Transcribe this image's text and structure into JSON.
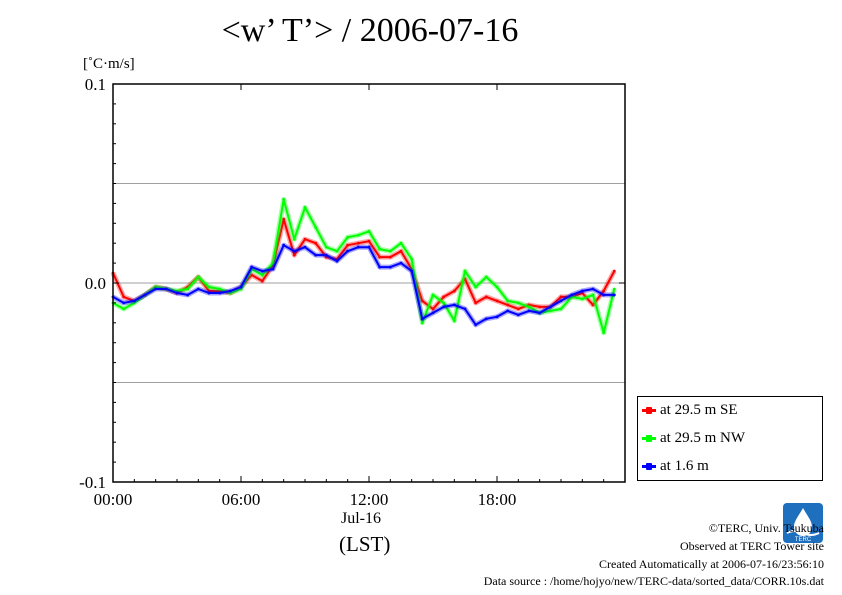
{
  "title": "<w’ T’> / 2006-07-16",
  "unit_label": "[˚C·m/s]",
  "x_label_date": "Jul-16",
  "x_label_zone": "(LST)",
  "footer": {
    "copyright": "©TERC, Univ. Tsukuba",
    "site": "Observed at TERC Tower site",
    "created": "Created Automatically at 2006-07-16/23:56:10",
    "source": "Data source : /home/hojyo/new/TERC-data/sorted_data/CORR.10s.dat"
  },
  "logo_text": "TERC",
  "colors": {
    "se": "#ff0000",
    "nw": "#00ff00",
    "low": "#0000ff"
  },
  "chart_data": {
    "type": "line",
    "title": "<w’ T’> / 2006-07-16",
    "xlabel": "Jul-16 (LST)",
    "ylabel": "[˚C·m/s]",
    "ylim": [
      -0.1,
      0.1
    ],
    "xlim": [
      0,
      24
    ],
    "x_ticks": [
      0,
      6,
      12,
      18
    ],
    "x_tick_labels": [
      "00:00",
      "06:00",
      "12:00",
      "18:00"
    ],
    "y_ticks": [
      -0.1,
      0.0,
      0.1
    ],
    "y_tick_labels": [
      "-0.1",
      "0.0",
      "0.1"
    ],
    "y_gridlines": [
      -0.05,
      0.05
    ],
    "legend_position": "right-bottom",
    "x": [
      0,
      0.5,
      1,
      1.5,
      2,
      2.5,
      3,
      3.5,
      4,
      4.5,
      5,
      5.5,
      6,
      6.5,
      7,
      7.5,
      8,
      8.5,
      9,
      9.5,
      10,
      10.5,
      11,
      11.5,
      12,
      12.5,
      13,
      13.5,
      14,
      14.5,
      15,
      15.5,
      16,
      16.5,
      17,
      17.5,
      18,
      18.5,
      19,
      19.5,
      20,
      20.5,
      21,
      21.5,
      22,
      22.5,
      23,
      23.5
    ],
    "series": [
      {
        "name": "at 29.5 m SE",
        "color": "#ff0000",
        "values": [
          0.005,
          -0.007,
          -0.009,
          -0.006,
          -0.002,
          -0.003,
          -0.005,
          -0.002,
          0.003,
          -0.004,
          -0.004,
          -0.005,
          -0.002,
          0.004,
          0.001,
          0.009,
          0.032,
          0.014,
          0.022,
          0.02,
          0.013,
          0.012,
          0.019,
          0.02,
          0.021,
          0.013,
          0.013,
          0.016,
          0.007,
          -0.009,
          -0.013,
          -0.007,
          -0.004,
          0.002,
          -0.01,
          -0.007,
          -0.009,
          -0.011,
          -0.013,
          -0.011,
          -0.012,
          -0.012,
          -0.007,
          -0.007,
          -0.005,
          -0.011,
          -0.004,
          0.006
        ]
      },
      {
        "name": "at 29.5 m NW",
        "color": "#00ff00",
        "values": [
          -0.01,
          -0.013,
          -0.01,
          -0.006,
          -0.002,
          -0.003,
          -0.004,
          -0.003,
          0.003,
          -0.002,
          -0.003,
          -0.005,
          -0.003,
          0.007,
          0.004,
          0.01,
          0.042,
          0.022,
          0.038,
          0.028,
          0.018,
          0.016,
          0.023,
          0.024,
          0.026,
          0.017,
          0.016,
          0.02,
          0.012,
          -0.02,
          -0.006,
          -0.01,
          -0.019,
          0.006,
          -0.002,
          0.003,
          -0.002,
          -0.009,
          -0.01,
          -0.012,
          -0.015,
          -0.014,
          -0.013,
          -0.007,
          -0.008,
          -0.006,
          -0.025,
          -0.003
        ]
      },
      {
        "name": "at 1.6 m",
        "color": "#0000ff",
        "values": [
          -0.007,
          -0.01,
          -0.009,
          -0.006,
          -0.003,
          -0.003,
          -0.005,
          -0.006,
          -0.003,
          -0.005,
          -0.005,
          -0.004,
          -0.002,
          0.008,
          0.006,
          0.007,
          0.019,
          0.016,
          0.018,
          0.014,
          0.014,
          0.011,
          0.016,
          0.018,
          0.018,
          0.008,
          0.008,
          0.01,
          0.006,
          -0.018,
          -0.015,
          -0.012,
          -0.011,
          -0.013,
          -0.021,
          -0.018,
          -0.017,
          -0.014,
          -0.016,
          -0.014,
          -0.015,
          -0.012,
          -0.009,
          -0.006,
          -0.004,
          -0.003,
          -0.006,
          -0.006
        ]
      }
    ]
  }
}
